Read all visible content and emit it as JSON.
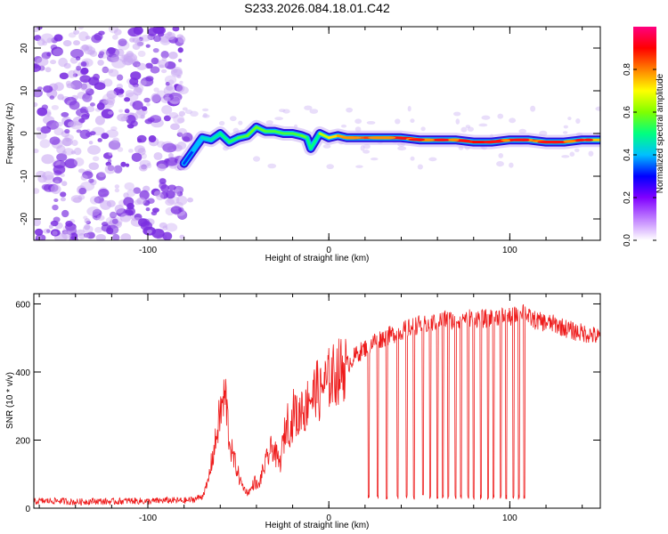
{
  "figure": {
    "title": "S233.2026.084.18.01.C42"
  },
  "colors": {
    "noise": "#7b2fe0",
    "snr_line": "#ee1c1c",
    "colorbar_stops": [
      "#ffffff",
      "#c080ff",
      "#8000ff",
      "#0000ff",
      "#00c0ff",
      "#00ff80",
      "#80ff00",
      "#ffff00",
      "#ff8000",
      "#ff0000",
      "#ff0080"
    ]
  },
  "chart_data": [
    {
      "type": "heatmap",
      "title": "S233.2026.084.18.01.C42",
      "xlabel": "Height of straight line (km)",
      "ylabel": "Frequency (Hz)",
      "xlim": [
        -163,
        150
      ],
      "ylim": [
        -25,
        25
      ],
      "x_ticks": [
        -100,
        0,
        100
      ],
      "y_ticks": [
        -20,
        -10,
        0,
        10,
        20
      ],
      "colorbar": {
        "label": "Normalized spectral amplitude",
        "range": [
          0.0,
          1.0
        ],
        "ticks": [
          0.0,
          0.2,
          0.4,
          0.6,
          0.8
        ]
      },
      "noise_region_x": [
        -163,
        -80
      ],
      "signal_track": {
        "x": [
          -80,
          -75,
          -70,
          -65,
          -60,
          -55,
          -50,
          -45,
          -40,
          -35,
          -30,
          -25,
          -20,
          -15,
          -12,
          -10,
          -5,
          0,
          5,
          10,
          20,
          30,
          40,
          50,
          60,
          70,
          80,
          90,
          100,
          110,
          120,
          130,
          140,
          150
        ],
        "freq": [
          -7,
          -4,
          -1,
          -1.5,
          0,
          -2,
          -1,
          -0.5,
          1.5,
          0.5,
          0.5,
          0,
          0,
          -0.5,
          -1,
          -3.5,
          0,
          -1,
          -0.5,
          -1,
          -1,
          -1,
          -1,
          -1.5,
          -1.5,
          -1.5,
          -2,
          -2,
          -1.5,
          -1.5,
          -2,
          -2,
          -1.5,
          -1.5
        ],
        "amplitude": [
          0.3,
          0.35,
          0.45,
          0.45,
          0.5,
          0.5,
          0.55,
          0.55,
          0.6,
          0.55,
          0.55,
          0.55,
          0.55,
          0.55,
          0.6,
          0.4,
          0.6,
          0.7,
          0.75,
          0.8,
          0.85,
          0.85,
          0.8,
          0.85,
          0.9,
          0.85,
          0.9,
          0.9,
          0.85,
          0.85,
          0.9,
          0.9,
          0.8,
          0.7
        ]
      }
    },
    {
      "type": "line",
      "xlabel": "Height of straight line (km)",
      "ylabel": "SNR (10 * v/v)",
      "xlim": [
        -163,
        150
      ],
      "ylim": [
        0,
        630
      ],
      "x_ticks": [
        -100,
        0,
        100
      ],
      "y_ticks": [
        0,
        200,
        400,
        600
      ],
      "series": [
        {
          "name": "SNR",
          "x": [
            -163,
            -150,
            -140,
            -130,
            -120,
            -110,
            -100,
            -90,
            -80,
            -75,
            -70,
            -67,
            -65,
            -63,
            -61,
            -59,
            -57,
            -55,
            -53,
            -51,
            -49,
            -47,
            -45,
            -43,
            -41,
            -39,
            -37,
            -35,
            -33,
            -31,
            -29,
            -27,
            -25,
            -23,
            -21,
            -19,
            -17,
            -15,
            -13,
            -11,
            -9,
            -7,
            -5,
            -3,
            -1,
            0,
            5,
            10,
            15,
            20,
            25,
            30,
            35,
            40,
            45,
            50,
            55,
            60,
            65,
            70,
            75,
            80,
            85,
            90,
            95,
            100,
            105,
            108,
            110,
            115,
            120,
            125,
            130,
            135,
            140,
            145,
            150
          ],
          "values": [
            20,
            22,
            18,
            21,
            19,
            22,
            20,
            23,
            22,
            25,
            35,
            70,
            130,
            180,
            250,
            300,
            330,
            200,
            150,
            120,
            80,
            60,
            45,
            55,
            80,
            60,
            100,
            130,
            160,
            180,
            150,
            130,
            200,
            260,
            230,
            300,
            250,
            310,
            280,
            340,
            320,
            360,
            330,
            370,
            360,
            380,
            400,
            420,
            450,
            470,
            490,
            500,
            510,
            520,
            530,
            540,
            540,
            550,
            555,
            550,
            560,
            560,
            555,
            560,
            565,
            560,
            570,
            590,
            560,
            550,
            545,
            540,
            530,
            520,
            515,
            510,
            500
          ]
        }
      ],
      "dropout_x": [
        22,
        27,
        32,
        38,
        43,
        47,
        52,
        56,
        60,
        63,
        66,
        70,
        73,
        77,
        80,
        84,
        88,
        91,
        95,
        98,
        102,
        105,
        108
      ]
    }
  ]
}
